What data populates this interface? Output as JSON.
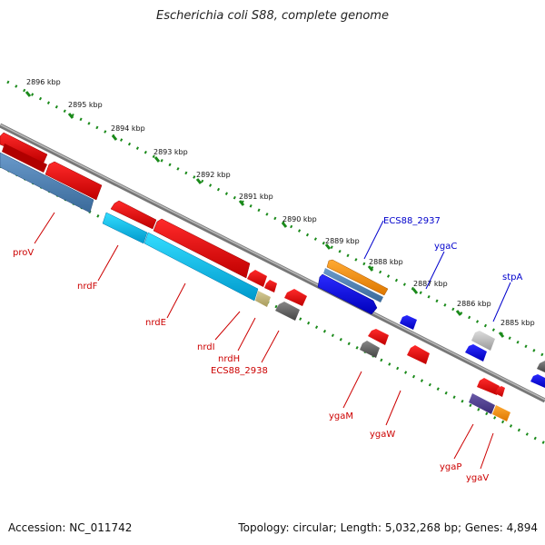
{
  "title": "Escherichia coli S88, complete genome",
  "footer": {
    "accession": "Accession: NC_011742",
    "summary": "Topology: circular; Length: 5,032,268 bp; Genes: 4,894"
  },
  "ticks": [
    "2896 kbp",
    "2895 kbp",
    "2894 kbp",
    "2893 kbp",
    "2892 kbp",
    "2891 kbp",
    "2890 kbp",
    "2889 kbp",
    "2888 kbp",
    "2887 kbp",
    "2886 kbp",
    "2885 kbp"
  ],
  "genes": [
    {
      "name": "proV",
      "strand": "minus"
    },
    {
      "name": "nrdF",
      "strand": "minus"
    },
    {
      "name": "nrdE",
      "strand": "minus"
    },
    {
      "name": "nrdI",
      "strand": "minus"
    },
    {
      "name": "nrdH",
      "strand": "minus"
    },
    {
      "name": "ECS88_2938",
      "strand": "minus"
    },
    {
      "name": "ygaM",
      "strand": "minus"
    },
    {
      "name": "ygaW",
      "strand": "minus"
    },
    {
      "name": "ygaP",
      "strand": "minus"
    },
    {
      "name": "ygaV",
      "strand": "minus"
    },
    {
      "name": "ECS88_2937",
      "strand": "plus"
    },
    {
      "name": "ygaC",
      "strand": "plus"
    },
    {
      "name": "stpA",
      "strand": "plus"
    }
  ],
  "colors": {
    "minus_label": "#cc0000",
    "plus_label": "#0000cc",
    "backbone": "#888888",
    "tick": "#1a8a1a"
  }
}
